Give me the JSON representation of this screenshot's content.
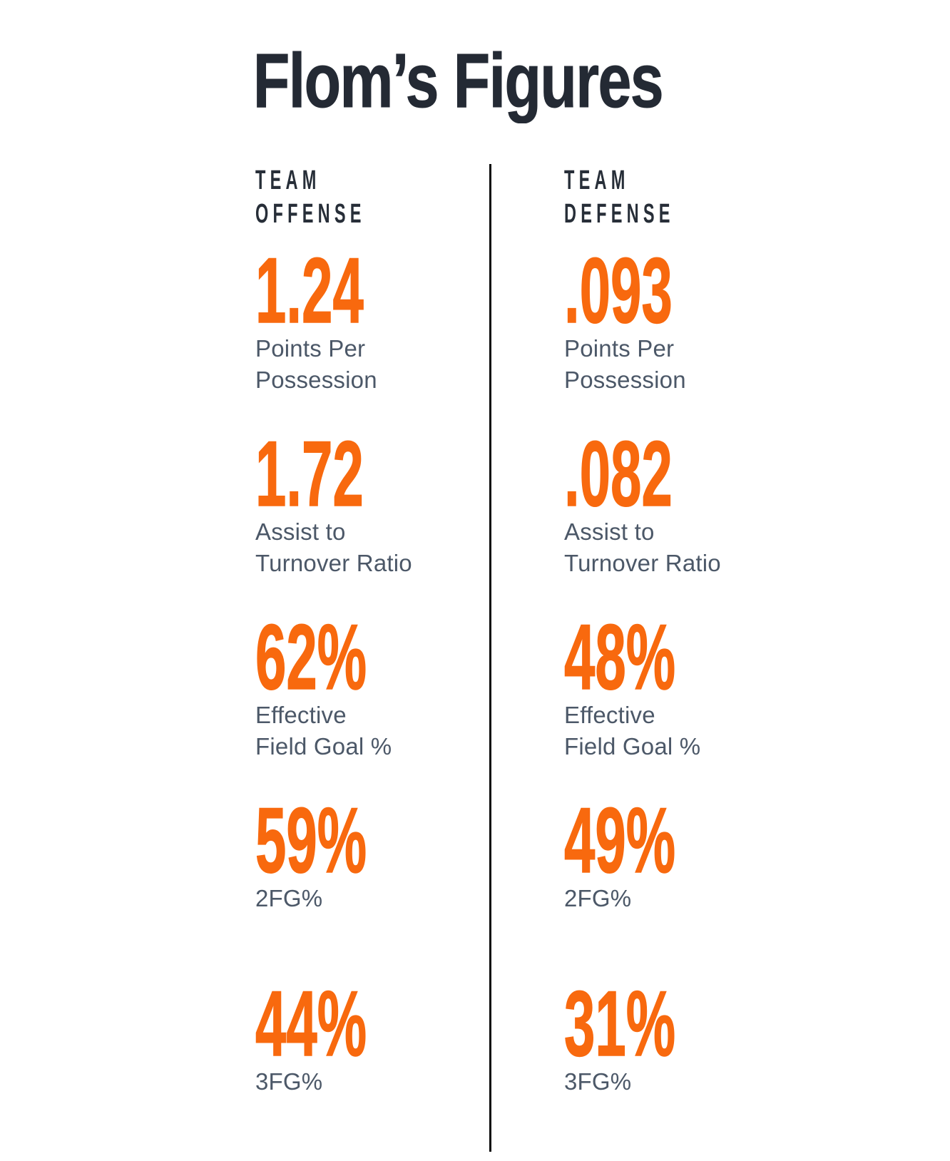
{
  "title": "Flom’s Figures",
  "colors": {
    "accent_orange": "#f8690e",
    "title_navy": "#242a34",
    "header_navy": "#272e38",
    "label_slate": "#4c5868",
    "divider_black": "#0b0b0b",
    "background": "#ffffff"
  },
  "columns": [
    {
      "header_line1": "TEAM",
      "header_line2": "OFFENSE",
      "stats": [
        {
          "value": "1.24",
          "label_line1": "Points Per",
          "label_line2": "Possession"
        },
        {
          "value": "1.72",
          "label_line1": "Assist to",
          "label_line2": "Turnover Ratio"
        },
        {
          "value": "62%",
          "label_line1": "Effective",
          "label_line2": "Field Goal %"
        },
        {
          "value": "59%",
          "label_line1": "2FG%",
          "label_line2": ""
        },
        {
          "value": "44%",
          "label_line1": "3FG%",
          "label_line2": ""
        }
      ]
    },
    {
      "header_line1": "TEAM",
      "header_line2": "DEFENSE",
      "stats": [
        {
          "value": ".093",
          "label_line1": "Points Per",
          "label_line2": "Possession"
        },
        {
          "value": ".082",
          "label_line1": "Assist to",
          "label_line2": "Turnover Ratio"
        },
        {
          "value": "48%",
          "label_line1": "Effective",
          "label_line2": "Field Goal %"
        },
        {
          "value": "49%",
          "label_line1": "2FG%",
          "label_line2": ""
        },
        {
          "value": "31%",
          "label_line1": "3FG%",
          "label_line2": ""
        }
      ]
    }
  ],
  "chart_data": {
    "type": "table",
    "title": "Flom’s Figures",
    "columns": [
      "Team Offense",
      "Team Defense"
    ],
    "rows": [
      {
        "metric": "Points Per Possession",
        "team_offense": "1.24",
        "team_defense": ".093"
      },
      {
        "metric": "Assist to Turnover Ratio",
        "team_offense": "1.72",
        "team_defense": ".082"
      },
      {
        "metric": "Effective Field Goal %",
        "team_offense": "62%",
        "team_defense": "48%"
      },
      {
        "metric": "2FG%",
        "team_offense": "59%",
        "team_defense": "49%"
      },
      {
        "metric": "3FG%",
        "team_offense": "44%",
        "team_defense": "31%"
      }
    ],
    "layout": {
      "orientation": "two-column comparison",
      "value_color": "#f8690e",
      "divider": "vertical black rule between columns"
    }
  }
}
